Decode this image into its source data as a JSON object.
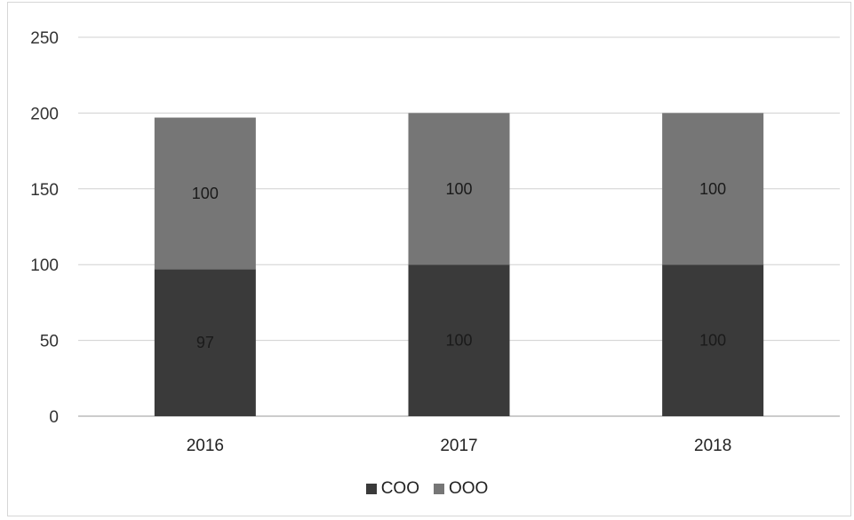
{
  "chart_data": {
    "type": "bar",
    "stacked": true,
    "categories": [
      "2016",
      "2017",
      "2018"
    ],
    "series": [
      {
        "name": "COO",
        "values": [
          97,
          100,
          100
        ],
        "color": "#3a3a3a"
      },
      {
        "name": "OOO",
        "values": [
          100,
          100,
          100
        ],
        "color": "#767676"
      }
    ],
    "ylim": [
      0,
      250
    ],
    "yticks": [
      0,
      50,
      100,
      150,
      200,
      250
    ],
    "grid": true,
    "legend_position": "bottom",
    "data_labels": true
  }
}
